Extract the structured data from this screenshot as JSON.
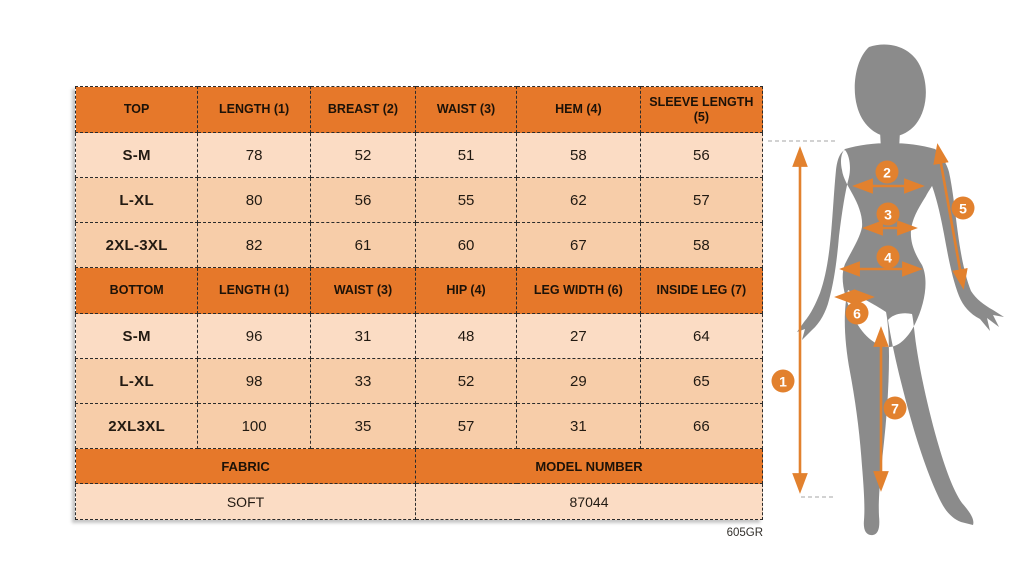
{
  "size_chart": {
    "sections": [
      {
        "header": [
          "TOP",
          "LENGTH (1)",
          "BREAST (2)",
          "WAIST (3)",
          "HEM (4)",
          "SLEEVE LENGTH (5)"
        ],
        "rows": [
          [
            "S-M",
            "78",
            "52",
            "51",
            "58",
            "56"
          ],
          [
            "L-XL",
            "80",
            "56",
            "55",
            "62",
            "57"
          ],
          [
            "2XL-3XL",
            "82",
            "61",
            "60",
            "67",
            "58"
          ]
        ]
      },
      {
        "header": [
          "BOTTOM",
          "LENGTH (1)",
          "WAIST (3)",
          "HIP (4)",
          "LEG WIDTH (6)",
          "INSIDE LEG (7)"
        ],
        "rows": [
          [
            "S-M",
            "96",
            "31",
            "48",
            "27",
            "64"
          ],
          [
            "L-XL",
            "98",
            "33",
            "52",
            "29",
            "65"
          ],
          [
            "2XL3XL",
            "100",
            "35",
            "57",
            "31",
            "66"
          ]
        ]
      }
    ],
    "footer": {
      "labels": [
        "FABRIC",
        "MODEL NUMBER"
      ],
      "values": [
        "SOFT",
        "87044"
      ]
    },
    "code": "605GR"
  },
  "figure": {
    "markers": [
      "1",
      "2",
      "3",
      "4",
      "5",
      "6",
      "7"
    ]
  },
  "colors": {
    "header_orange": "#E6782A",
    "row_light": "#FBDCC4",
    "row_dark": "#F7CDA9",
    "accent_orange": "#E2812E",
    "silhouette_gray": "#8B8B8B",
    "border_dark": "#2B2B2B",
    "guide_gray": "#C4C4C4"
  }
}
